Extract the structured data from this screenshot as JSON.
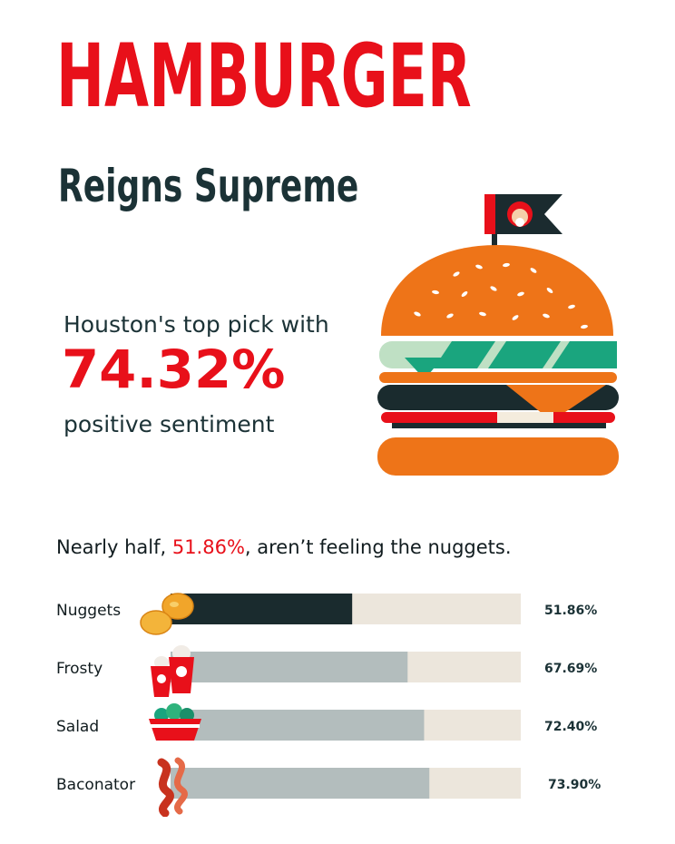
{
  "title": "HAMBURGER",
  "subtitle": "Reigns Supreme",
  "stat": {
    "intro": "Houston's top pick with",
    "value": "74.32%",
    "outro": "positive sentiment"
  },
  "headline": {
    "before": "Nearly half, ",
    "highlight": "51.86%",
    "after": ", aren’t feeling the nuggets."
  },
  "colors": {
    "red": "#e8101a",
    "dark": "#1b3236",
    "bar_highlight": "#1a2b2e",
    "bar_fill": "#b3bdbd",
    "bar_track": "#ece6dc",
    "bun": "#ee7418",
    "lettuce": "#1aa57e"
  },
  "icons": [
    "nuggets-icon",
    "frosty-cups-icon",
    "salad-bowl-icon",
    "bacon-icon",
    "burger-illustration",
    "flag-icon"
  ],
  "chart_data": {
    "type": "bar",
    "orientation": "horizontal",
    "categories": [
      "Nuggets",
      "Frosty",
      "Salad",
      "Baconator"
    ],
    "values": [
      51.86,
      67.69,
      72.4,
      73.9
    ],
    "value_labels": [
      "51.86%",
      "67.69%",
      "72.40%",
      "73.90%"
    ],
    "xlim": [
      0,
      100
    ],
    "highlight_index": 0,
    "grid": false,
    "title": "",
    "xlabel": "",
    "ylabel": ""
  }
}
